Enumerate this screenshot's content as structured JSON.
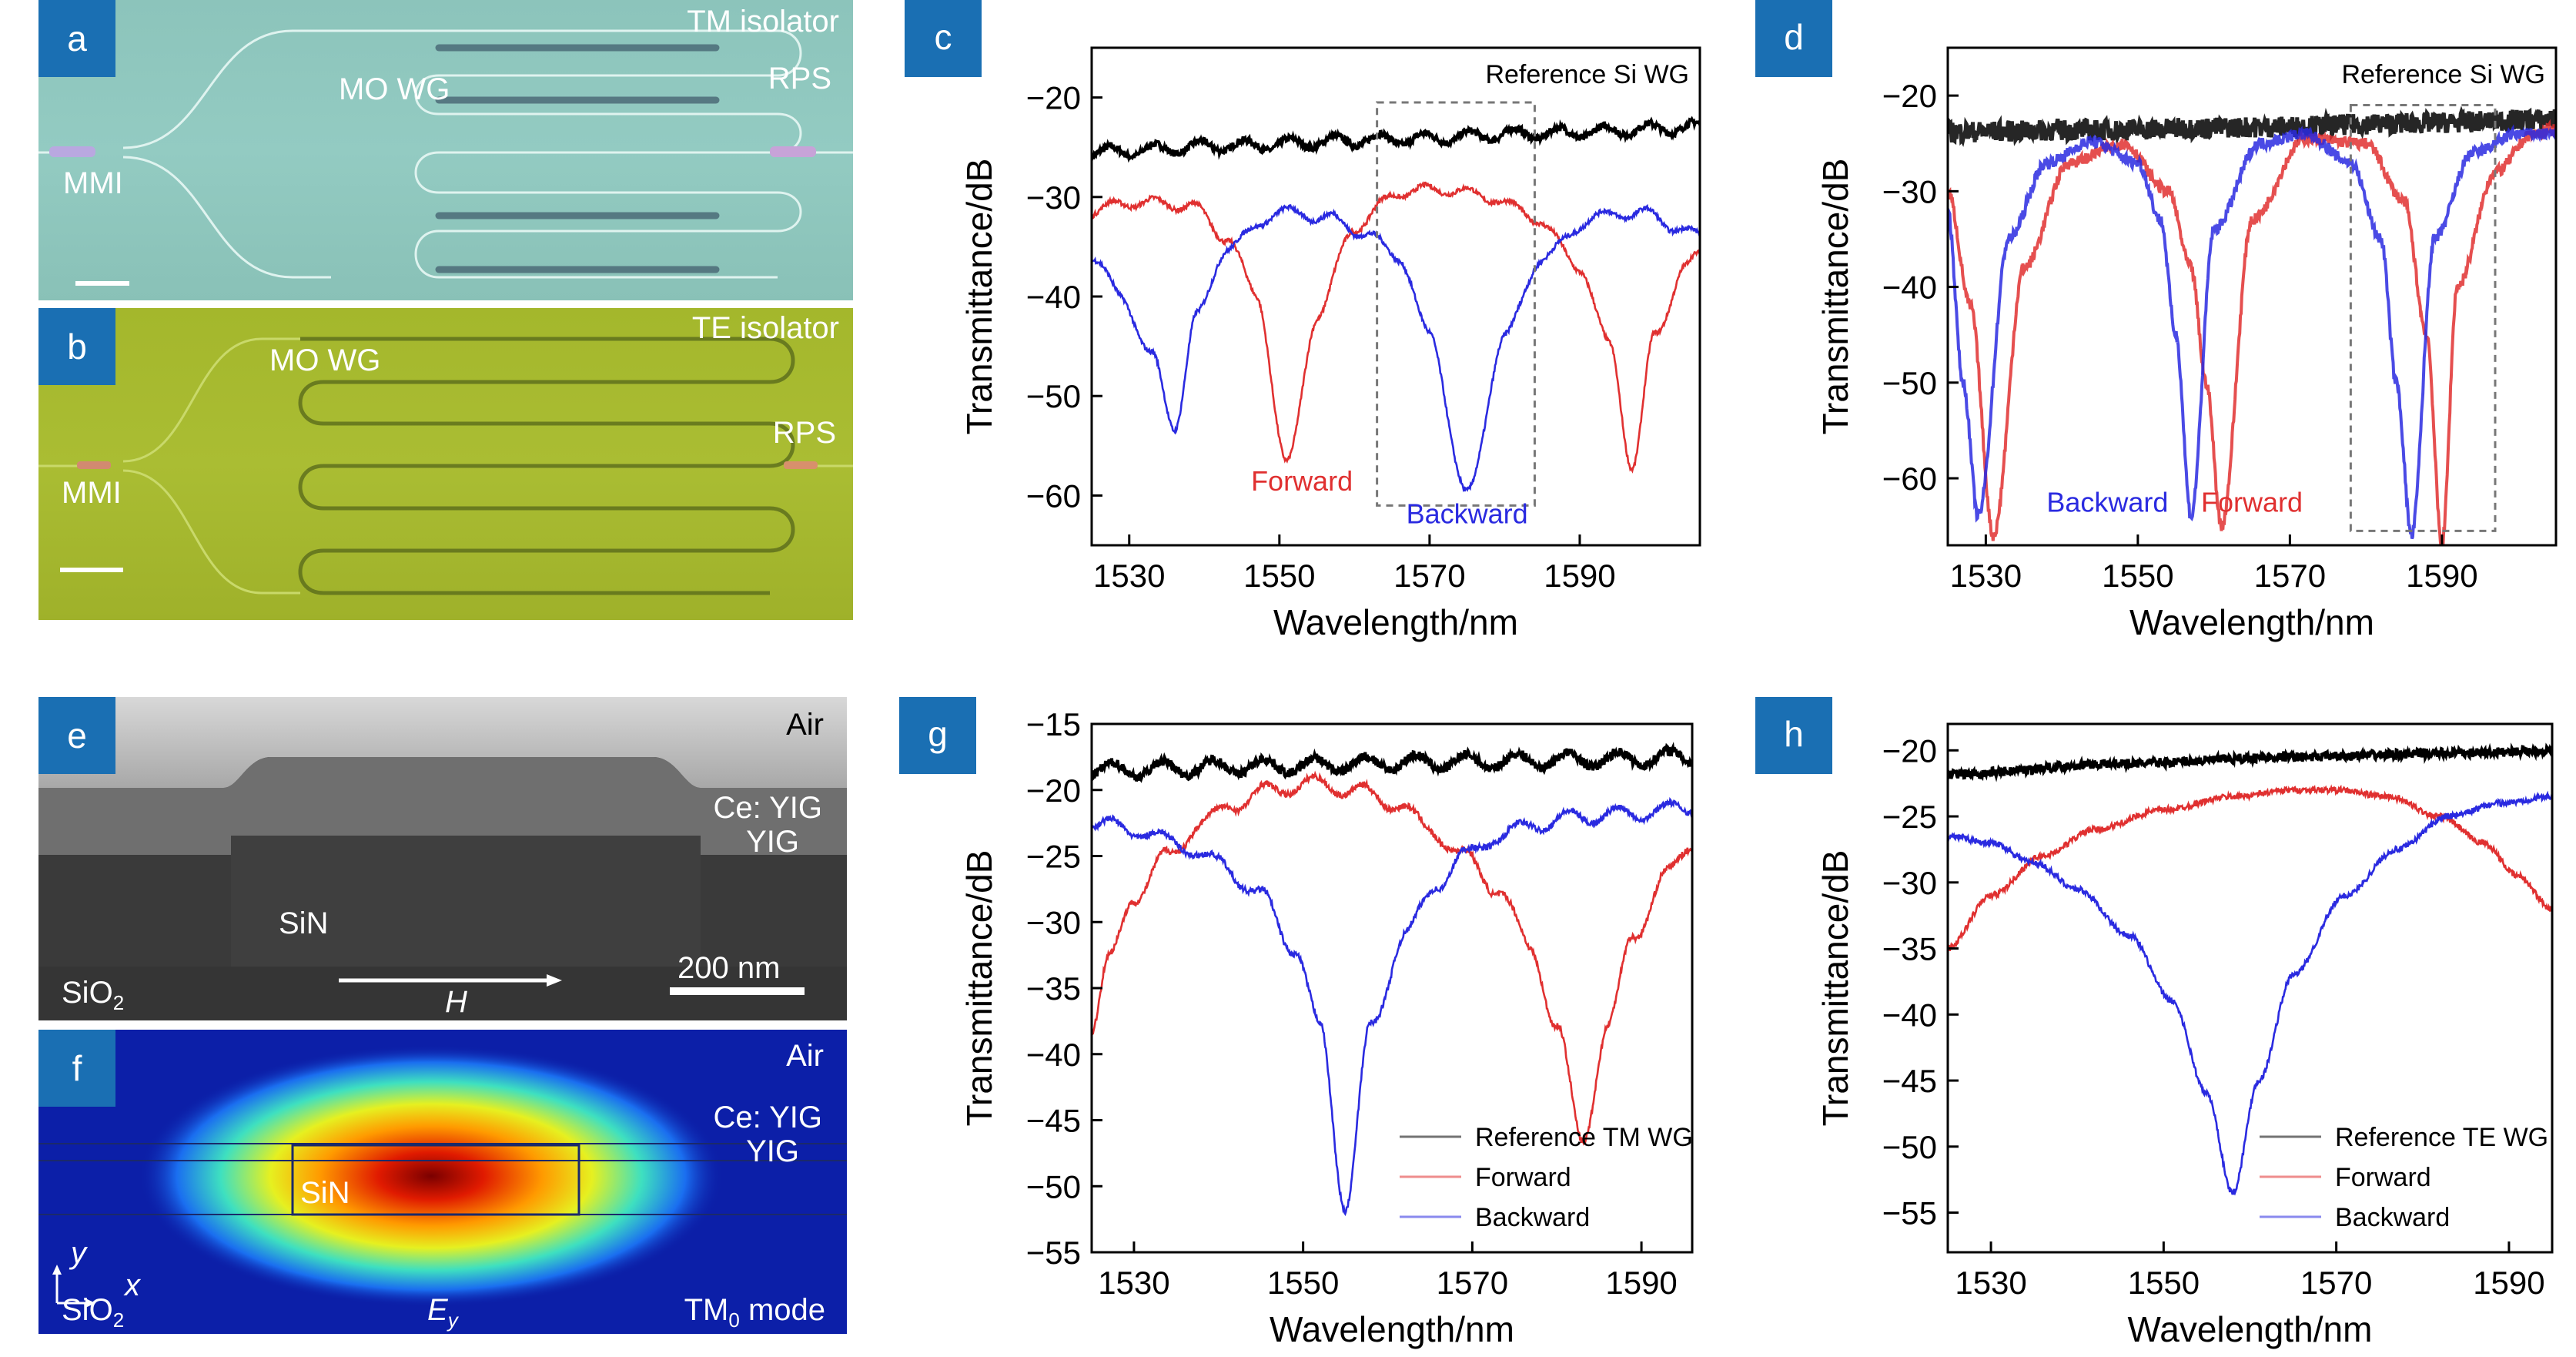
{
  "panels": {
    "a": {
      "letter": "a",
      "top_right": "TM isolator",
      "mo_wg": "MO WG",
      "rps": "RPS",
      "mmi": "MMI",
      "bg": "#8fc6bd"
    },
    "b": {
      "letter": "b",
      "top_right": "TE isolator",
      "mo_wg": "MO WG",
      "rps": "RPS",
      "mmi": "MMI",
      "bg": "#a6b82e"
    },
    "e": {
      "letter": "e",
      "air": "Air",
      "ceyig": "Ce: YIG",
      "yig": "YIG",
      "sin": "SiN",
      "sio2": "SiO",
      "sio2_sub": "2",
      "scale": "200 nm",
      "h": "H"
    },
    "f": {
      "letter": "f",
      "air": "Air",
      "ceyig": "Ce: YIG",
      "yig": "YIG",
      "sin": "SiN",
      "sio2": "SiO",
      "sio2_sub": "2",
      "y": "y",
      "x": "x",
      "ey": "E",
      "ey_sub": "y",
      "mode_pre": "TM",
      "mode_sub": "0",
      "mode_post": " mode"
    }
  },
  "chart_data": [
    {
      "id": "c",
      "letter": "c",
      "type": "line",
      "xlabel": "Wavelength/nm",
      "ylabel": "Transmittance/dB",
      "xlim": [
        1525,
        1606
      ],
      "ylim": [
        -65,
        -15
      ],
      "xticks": [
        1530,
        1550,
        1570,
        1590
      ],
      "yticks": [
        -20,
        -30,
        -40,
        -50,
        -60
      ],
      "series": [
        {
          "name": "Reference Si WG",
          "color": "#000000",
          "x": [
            1525,
            1545,
            1565,
            1585,
            1606
          ],
          "y": [
            -25.5,
            -24.8,
            -24.2,
            -23.6,
            -23.0
          ]
        },
        {
          "name": "Forward",
          "color": "#e03030",
          "x": [
            1525,
            1530,
            1538,
            1543,
            1547,
            1551,
            1555,
            1560,
            1566,
            1572,
            1578,
            1584,
            1590,
            1594,
            1597,
            1600,
            1604,
            1606
          ],
          "y": [
            -31.5,
            -30.5,
            -30.8,
            -34,
            -40,
            -57,
            -42,
            -33,
            -29.5,
            -29.2,
            -30,
            -32,
            -37,
            -45,
            -57,
            -44,
            -37,
            -36
          ]
        },
        {
          "name": "Backward",
          "color": "#2a2ae0",
          "x": [
            1525,
            1529,
            1533,
            1536,
            1539,
            1543,
            1550,
            1556,
            1561,
            1566,
            1570,
            1575,
            1580,
            1585,
            1592,
            1598,
            1603,
            1606
          ],
          "y": [
            -36,
            -40,
            -46,
            -53,
            -42,
            -35,
            -31.5,
            -32,
            -33.5,
            -36,
            -44,
            -60,
            -44,
            -36,
            -32,
            -31.5,
            -33,
            -34
          ]
        }
      ],
      "annotations": [
        {
          "text": "Reference Si WG",
          "color": "#000000"
        },
        {
          "text": "Forward",
          "color": "#e03030",
          "x": 1553,
          "y": -59.5
        },
        {
          "text": "Backward",
          "color": "#2a2ae0",
          "x": 1575,
          "y": -62.8
        }
      ],
      "dashed_box": {
        "x": [
          1563,
          1584
        ],
        "y": [
          -20.5,
          -61
        ]
      }
    },
    {
      "id": "d",
      "letter": "d",
      "type": "line",
      "xlabel": "Wavelength/nm",
      "ylabel": "Transmittance/dB",
      "xlim": [
        1525,
        1605
      ],
      "ylim": [
        -67,
        -15
      ],
      "xticks": [
        1530,
        1550,
        1570,
        1590
      ],
      "yticks": [
        -20,
        -30,
        -40,
        -50,
        -60
      ],
      "series": [
        {
          "name": "Reference Si WG",
          "color": "#000000",
          "x": [
            1525,
            1545,
            1565,
            1585,
            1605
          ],
          "y": [
            -23.8,
            -23.6,
            -23.3,
            -22.9,
            -22.5
          ]
        },
        {
          "name": "Forward",
          "color": "#e03030",
          "x": [
            1525,
            1528,
            1531,
            1535,
            1541,
            1548,
            1554,
            1557,
            1559,
            1561,
            1565,
            1572,
            1580,
            1585,
            1588,
            1590,
            1592,
            1597,
            1602,
            1605
          ],
          "y": [
            -30,
            -42,
            -66,
            -38,
            -27,
            -25,
            -30,
            -38,
            -50,
            -65,
            -33,
            -24.5,
            -25,
            -31,
            -45,
            -67,
            -40,
            -28,
            -24,
            -23.5
          ]
        },
        {
          "name": "Backward",
          "color": "#2a2ae0",
          "x": [
            1525,
            1527,
            1529,
            1533,
            1538,
            1544,
            1550,
            1553,
            1555,
            1557,
            1560,
            1566,
            1572,
            1578,
            1582,
            1584,
            1586,
            1589,
            1594,
            1600,
            1605
          ],
          "y": [
            -32,
            -50,
            -64,
            -35,
            -27,
            -24.8,
            -27,
            -33,
            -45,
            -64,
            -34,
            -25,
            -24,
            -27,
            -35,
            -50,
            -66,
            -35,
            -26,
            -24,
            -24
          ]
        }
      ],
      "annotations": [
        {
          "text": "Reference Si WG",
          "color": "#000000"
        },
        {
          "text": "Backward",
          "color": "#2a2ae0",
          "x": 1546,
          "y": -63.5
        },
        {
          "text": "Forward",
          "color": "#e03030",
          "x": 1565,
          "y": -63.5
        }
      ],
      "dashed_box": {
        "x": [
          1578,
          1597
        ],
        "y": [
          -21,
          -65.5
        ]
      }
    },
    {
      "id": "g",
      "letter": "g",
      "type": "line",
      "xlabel": "Wavelength/nm",
      "ylabel": "Transmittance/dB",
      "xlim": [
        1525,
        1596
      ],
      "ylim": [
        -55,
        -15
      ],
      "xticks": [
        1530,
        1550,
        1570,
        1590
      ],
      "yticks": [
        -15,
        -20,
        -25,
        -30,
        -35,
        -40,
        -45,
        -50,
        -55
      ],
      "series": [
        {
          "name": "Reference TM WG",
          "color": "#000000",
          "x": [
            1525,
            1545,
            1565,
            1585,
            1596
          ],
          "y": [
            -18.5,
            -18.2,
            -17.9,
            -17.7,
            -17.5
          ]
        },
        {
          "name": "Forward",
          "color": "#e03030",
          "x": [
            1525,
            1527,
            1530,
            1534,
            1538,
            1542,
            1546,
            1551,
            1556,
            1561,
            1565,
            1569,
            1573,
            1577,
            1580,
            1583,
            1586,
            1589,
            1593,
            1596
          ],
          "y": [
            -38,
            -33,
            -28,
            -25,
            -22.5,
            -21,
            -20,
            -19.5,
            -20,
            -21,
            -23,
            -25,
            -27.5,
            -32,
            -38,
            -46.5,
            -38,
            -31,
            -26.5,
            -24
          ]
        },
        {
          "name": "Backward",
          "color": "#2a2ae0",
          "x": [
            1525,
            1530,
            1535,
            1540,
            1545,
            1549,
            1552,
            1555,
            1558,
            1562,
            1566,
            1569,
            1573,
            1578,
            1583,
            1588,
            1593,
            1596
          ],
          "y": [
            -22.5,
            -23,
            -24,
            -25.5,
            -28,
            -32,
            -38,
            -51.5,
            -38,
            -31,
            -27,
            -25,
            -23.5,
            -22.5,
            -22,
            -21.8,
            -21.5,
            -21.3
          ]
        }
      ],
      "legend": {
        "position": "bottom-right",
        "entries": [
          "Reference TM WG",
          "Forward",
          "Backward"
        ]
      }
    },
    {
      "id": "h",
      "letter": "h",
      "type": "line",
      "xlabel": "Wavelength/nm",
      "ylabel": "Transmittance/dB",
      "xlim": [
        1525,
        1595
      ],
      "ylim": [
        -58,
        -18
      ],
      "xticks": [
        1530,
        1550,
        1570,
        1590
      ],
      "yticks": [
        -20,
        -25,
        -30,
        -35,
        -40,
        -45,
        -50,
        -55
      ],
      "series": [
        {
          "name": "Reference TE WG",
          "color": "#000000",
          "x": [
            1525,
            1545,
            1565,
            1585,
            1595
          ],
          "y": [
            -21.8,
            -21,
            -20.5,
            -20.2,
            -20
          ]
        },
        {
          "name": "Forward",
          "color": "#e03030",
          "x": [
            1525,
            1530,
            1536,
            1542,
            1550,
            1558,
            1565,
            1570,
            1576,
            1582,
            1587,
            1591,
            1595
          ],
          "y": [
            -35,
            -31,
            -28,
            -26,
            -24.5,
            -23.5,
            -23,
            -23,
            -23.5,
            -25,
            -27,
            -29.5,
            -32
          ]
        },
        {
          "name": "Backward",
          "color": "#2a2ae0",
          "x": [
            1525,
            1530,
            1535,
            1540,
            1546,
            1551,
            1555,
            1558,
            1561,
            1565,
            1571,
            1577,
            1583,
            1589,
            1595
          ],
          "y": [
            -26.5,
            -27,
            -28.5,
            -30.5,
            -34,
            -39,
            -46,
            -53.5,
            -45,
            -37,
            -31,
            -27.5,
            -25,
            -24,
            -23.5
          ]
        }
      ],
      "legend": {
        "position": "bottom-right",
        "entries": [
          "Reference TE WG",
          "Forward",
          "Backward"
        ]
      }
    }
  ]
}
